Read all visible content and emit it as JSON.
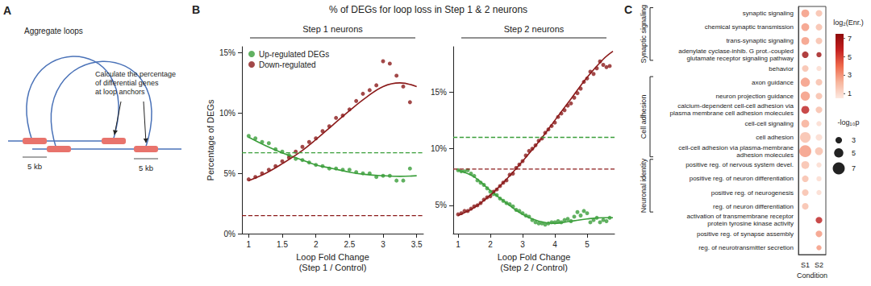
{
  "panel_labels": [
    "A",
    "B",
    "C"
  ],
  "figure_title": "% of DEGs for loop loss in Step 1 & 2 neurons",
  "diagram": {
    "title": "Aggregate loops",
    "callout": "Calculate the percentage\nof differential genes\nat loop anchors",
    "anchor_labels": [
      "5 kb",
      "5 kb"
    ]
  },
  "chart_data": [
    {
      "type": "scatter",
      "title": "Step 1 neurons",
      "x_label": "Loop Fold Change\n(Step 1 / Control)",
      "y_label": "Percentage of DEGs",
      "xlim": [
        0.9,
        3.6
      ],
      "xticks": [
        1,
        1.5,
        2,
        2.5,
        3,
        3.5
      ],
      "ylim": [
        0,
        15.5
      ],
      "yticks": [
        {
          "value": 0,
          "label": "0%"
        },
        {
          "value": 5,
          "label": "5%"
        },
        {
          "value": 10,
          "label": "10%"
        },
        {
          "value": 15,
          "label": "15%"
        }
      ],
      "grid": false,
      "legend": "top-left",
      "series": [
        {
          "name": "Up-regulated DEGs",
          "type": "scatter",
          "marker": "circle",
          "color": "#3a9e3a",
          "x": [
            1,
            1.1,
            1.2,
            1.3,
            1.4,
            1.5,
            1.6,
            1.7,
            1.8,
            1.9,
            2,
            2.1,
            2.2,
            2.3,
            2.4,
            2.5,
            2.6,
            2.7,
            2.8,
            2.9,
            3,
            3.1,
            3.2,
            3.3,
            3.4
          ],
          "values": [
            8.1,
            7.9,
            7.6,
            7.5,
            7.0,
            6.8,
            6.5,
            6.2,
            6.1,
            5.9,
            5.7,
            5.6,
            5.4,
            5.4,
            5.3,
            5.3,
            5.1,
            5.0,
            5.0,
            4.7,
            4.8,
            4.8,
            4.4,
            4.4,
            5.4
          ]
        },
        {
          "name": "Down-regulated",
          "type": "scatter",
          "marker": "circle",
          "color": "#8b1a1a",
          "x": [
            1,
            1.1,
            1.2,
            1.3,
            1.4,
            1.5,
            1.6,
            1.7,
            1.8,
            1.9,
            2,
            2.1,
            2.2,
            2.3,
            2.4,
            2.5,
            2.6,
            2.7,
            2.8,
            2.9,
            3,
            3.1,
            3.2,
            3.3,
            3.4
          ],
          "values": [
            4.5,
            4.7,
            5.0,
            5.3,
            5.6,
            6.0,
            6.3,
            6.8,
            7.2,
            7.6,
            7.9,
            8.5,
            8.9,
            9.6,
            9.8,
            10.3,
            11.0,
            11.6,
            11.9,
            12.3,
            14.3,
            14.1,
            13.1,
            12.2,
            10.9
          ]
        },
        {
          "type": "line",
          "line_style": "solid",
          "color": "#3a9e3a",
          "x": [
            1,
            1.25,
            1.5,
            1.75,
            2,
            2.25,
            2.5,
            2.75,
            3,
            3.25,
            3.5
          ],
          "values": [
            8.0,
            7.3,
            6.7,
            6.2,
            5.7,
            5.4,
            5.1,
            4.9,
            4.8,
            4.75,
            4.8
          ]
        },
        {
          "type": "line",
          "line_style": "solid",
          "color": "#8b1a1a",
          "x": [
            1,
            1.25,
            1.5,
            1.75,
            2,
            2.25,
            2.5,
            2.75,
            3,
            3.25,
            3.5
          ],
          "values": [
            4.4,
            5.0,
            5.8,
            6.7,
            7.8,
            9.0,
            10.2,
            11.3,
            12.2,
            12.5,
            12.2
          ]
        },
        {
          "type": "hline",
          "line_style": "dashed",
          "color": "#3a9e3a",
          "value": 6.7
        },
        {
          "type": "hline",
          "line_style": "dashed",
          "color": "#8b1a1a",
          "value": 1.5
        }
      ]
    },
    {
      "type": "scatter",
      "title": "Step 2 neurons",
      "x_label": "Loop Fold Change\n(Step 2 / Control)",
      "xlim": [
        0.85,
        5.85
      ],
      "xticks": [
        1,
        2,
        3,
        4,
        5
      ],
      "ylim": [
        2.5,
        19
      ],
      "yticks": [
        {
          "value": 5,
          "label": "5%"
        },
        {
          "value": 10,
          "label": "10%"
        },
        {
          "value": 15,
          "label": "15%"
        }
      ],
      "grid": false,
      "series": [
        {
          "name": "Up-regulated DEGs",
          "type": "scatter",
          "marker": "circle",
          "color": "#3a9e3a",
          "x": [
            1,
            1.1,
            1.2,
            1.3,
            1.4,
            1.5,
            1.6,
            1.7,
            1.8,
            1.9,
            2,
            2.1,
            2.2,
            2.3,
            2.4,
            2.5,
            2.6,
            2.7,
            2.8,
            2.9,
            3,
            3.1,
            3.2,
            3.3,
            3.4,
            3.5,
            3.6,
            3.7,
            3.8,
            3.9,
            4,
            4.1,
            4.2,
            4.3,
            4.4,
            4.5,
            4.6,
            4.7,
            4.8,
            4.9,
            5,
            5.1,
            5.2,
            5.3,
            5.4,
            5.5,
            5.6,
            5.7
          ],
          "values": [
            8.1,
            8.0,
            8.0,
            8.1,
            7.8,
            7.6,
            7.2,
            7.0,
            6.8,
            6.5,
            6.2,
            6.0,
            5.9,
            5.6,
            5.4,
            5.2,
            5.1,
            4.9,
            4.6,
            4.5,
            4.3,
            4.1,
            4.0,
            3.7,
            3.5,
            3.4,
            3.4,
            3.3,
            3.4,
            3.5,
            3.5,
            3.6,
            3.5,
            3.7,
            3.8,
            3.6,
            4.0,
            4.4,
            4.1,
            4.5,
            4.3,
            3.5,
            3.7,
            3.9,
            3.5,
            3.7,
            3.6,
            3.9
          ]
        },
        {
          "name": "Down-regulated",
          "type": "scatter",
          "marker": "circle",
          "color": "#8b1a1a",
          "x": [
            1,
            1.1,
            1.2,
            1.3,
            1.4,
            1.5,
            1.6,
            1.7,
            1.8,
            1.9,
            2,
            2.1,
            2.2,
            2.3,
            2.4,
            2.5,
            2.6,
            2.7,
            2.8,
            2.9,
            3,
            3.1,
            3.2,
            3.3,
            3.4,
            3.5,
            3.6,
            3.7,
            3.8,
            3.9,
            4,
            4.1,
            4.2,
            4.3,
            4.4,
            4.5,
            4.6,
            4.7,
            4.8,
            4.9,
            5,
            5.1,
            5.2,
            5.3,
            5.4,
            5.5,
            5.6,
            5.7
          ],
          "values": [
            4.2,
            4.3,
            4.5,
            4.5,
            4.7,
            4.9,
            5.0,
            5.2,
            5.5,
            5.7,
            5.8,
            6.2,
            6.4,
            6.7,
            7.0,
            7.2,
            7.7,
            7.8,
            8.3,
            8.6,
            8.9,
            9.4,
            9.8,
            10.0,
            10.3,
            10.7,
            10.9,
            11.4,
            11.7,
            12.0,
            12.3,
            12.8,
            13.1,
            13.4,
            13.8,
            14.0,
            14.5,
            14.9,
            15.3,
            15.9,
            16.2,
            16.8,
            16.6,
            17.1,
            17.7,
            17.4,
            17.2,
            17.3
          ]
        },
        {
          "type": "line",
          "line_style": "solid",
          "color": "#3a9e3a",
          "x": [
            1,
            1.5,
            2,
            2.5,
            3,
            3.5,
            4,
            4.5,
            5,
            5.5,
            5.8
          ],
          "values": [
            8.1,
            7.5,
            6.3,
            5.2,
            4.2,
            3.6,
            3.4,
            3.6,
            3.8,
            3.9,
            3.9
          ]
        },
        {
          "type": "line",
          "line_style": "solid",
          "color": "#8b1a1a",
          "x": [
            1,
            1.5,
            2,
            2.5,
            3,
            3.5,
            4,
            4.5,
            5,
            5.5,
            5.8
          ],
          "values": [
            4.1,
            4.8,
            5.9,
            7.3,
            8.9,
            10.6,
            12.5,
            14.4,
            16.3,
            17.9,
            18.6
          ]
        },
        {
          "type": "hline",
          "line_style": "dashed",
          "color": "#3a9e3a",
          "value": 11.0
        },
        {
          "type": "hline",
          "line_style": "dashed",
          "color": "#8b1a1a",
          "value": 8.2
        }
      ]
    },
    {
      "type": "dot",
      "x_label": "Condition",
      "categories": [
        "S1",
        "S2"
      ],
      "terms": [
        "synaptic signaling",
        "chemical synaptic transmission",
        "trans-synaptic signaling",
        "adenylate cyclase-inhib. G prot.-coupled\nglutamate receptor signaling pathway",
        "behavior",
        "axon guidance",
        "neuron projection guidance",
        "calcium-dependent cell-cell adhesion via\nplasma membrane cell adhesion molecules",
        "cell-cell signaling",
        "cell adhesion",
        "cell-cell adhesion via plasma-membrane\nadhesion molecules",
        "positive reg. of nervous system devel.",
        "positive reg. of neuron differentiation",
        "positive reg. of neurogenesis",
        "reg. of neuron differentiation",
        "activation of transmembrane receptor\nprotein tyrosine kinase activity",
        "positive reg. of synapse assembly",
        "reg. of neurotransmitter secretion"
      ],
      "groups": [
        {
          "label": "Synaptic signaling",
          "terms": [
            "synaptic signaling",
            "adenylate cyclase-inhib. G prot.-coupled\nglutamate receptor signaling pathway"
          ]
        },
        {
          "label": "Cell adhesion",
          "terms": [
            "axon guidance",
            "cell-cell adhesion via plasma-membrane\nadhesion molecules"
          ]
        },
        {
          "label": "Neuronal identity",
          "terms": [
            "positive reg. of nervous system devel.",
            "reg. of neuron differentiation"
          ]
        }
      ],
      "log2_enrichment": [
        [
          3,
          2
        ],
        [
          3,
          2
        ],
        [
          3,
          2
        ],
        [
          7,
          7
        ],
        [
          2,
          1
        ],
        [
          3,
          2
        ],
        [
          3,
          2
        ],
        [
          6,
          2
        ],
        [
          2.5,
          1
        ],
        [
          2,
          1
        ],
        [
          3,
          2
        ],
        [
          2,
          1
        ],
        [
          2,
          1
        ],
        [
          2,
          1
        ],
        [
          2,
          null
        ],
        [
          null,
          6
        ],
        [
          null,
          3
        ],
        [
          null,
          3
        ]
      ],
      "neg_log10_p": [
        [
          4,
          3
        ],
        [
          4,
          3
        ],
        [
          4,
          3
        ],
        [
          3,
          2
        ],
        [
          3,
          2
        ],
        [
          5,
          3
        ],
        [
          5,
          3
        ],
        [
          4,
          3
        ],
        [
          4,
          2
        ],
        [
          6,
          3
        ],
        [
          7,
          4
        ],
        [
          4,
          2
        ],
        [
          3,
          2
        ],
        [
          3,
          2
        ],
        [
          3,
          null
        ],
        [
          null,
          3
        ],
        [
          null,
          3
        ],
        [
          null,
          2
        ]
      ],
      "color_label": "log₂(Enr.)",
      "color_range": [
        0.5,
        7.5
      ],
      "color_ticks": [
        1,
        3,
        5,
        7
      ],
      "size_label": "-log₁₀p",
      "size_ticks": [
        3,
        5,
        7
      ]
    }
  ]
}
